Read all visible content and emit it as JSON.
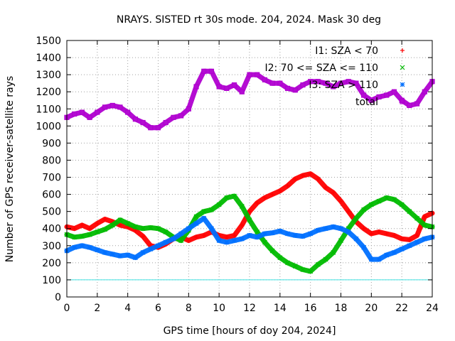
{
  "chart_data": {
    "type": "scatter",
    "title": "NRAYS. SISTED rt 30s mode. 204, 2024. Mask 30 deg",
    "xlabel": "GPS time [hours of doy 204, 2024]",
    "ylabel": "Number of GPS receiver-satellite rays",
    "xlim": [
      0,
      24
    ],
    "ylim": [
      0,
      1500
    ],
    "x_ticks": [
      "0",
      "2",
      "4",
      "6",
      "8",
      "10",
      "12",
      "14",
      "16",
      "18",
      "20",
      "22",
      "24"
    ],
    "y_ticks": [
      "0",
      "100",
      "200",
      "300",
      "400",
      "500",
      "600",
      "700",
      "800",
      "900",
      "1000",
      "1100",
      "1200",
      "1300",
      "1400",
      "1500"
    ],
    "grid": true,
    "legend_position": "top-right",
    "threshold_line": {
      "y": 100,
      "color": "#40e0e0"
    },
    "series": [
      {
        "name": "I1: SZA < 70",
        "color": "#ff0000",
        "marker": "+",
        "points": [
          [
            0,
            410
          ],
          [
            0.5,
            400
          ],
          [
            1,
            420
          ],
          [
            1.5,
            400
          ],
          [
            2,
            430
          ],
          [
            2.5,
            455
          ],
          [
            3,
            440
          ],
          [
            3.5,
            420
          ],
          [
            4,
            410
          ],
          [
            4.5,
            390
          ],
          [
            5,
            355
          ],
          [
            5.5,
            300
          ],
          [
            6,
            290
          ],
          [
            6.5,
            310
          ],
          [
            7,
            340
          ],
          [
            7.5,
            350
          ],
          [
            8,
            330
          ],
          [
            8.5,
            350
          ],
          [
            9,
            360
          ],
          [
            9.5,
            380
          ],
          [
            10,
            360
          ],
          [
            10.5,
            350
          ],
          [
            11,
            360
          ],
          [
            11.5,
            420
          ],
          [
            12,
            500
          ],
          [
            12.5,
            550
          ],
          [
            13,
            580
          ],
          [
            13.5,
            600
          ],
          [
            14,
            620
          ],
          [
            14.5,
            650
          ],
          [
            15,
            690
          ],
          [
            15.5,
            710
          ],
          [
            16,
            720
          ],
          [
            16.5,
            690
          ],
          [
            17,
            640
          ],
          [
            17.5,
            610
          ],
          [
            18,
            560
          ],
          [
            18.5,
            500
          ],
          [
            19,
            440
          ],
          [
            19.5,
            400
          ],
          [
            20,
            370
          ],
          [
            20.5,
            380
          ],
          [
            21,
            370
          ],
          [
            21.5,
            360
          ],
          [
            22,
            340
          ],
          [
            22.5,
            335
          ],
          [
            23,
            360
          ],
          [
            23.5,
            470
          ],
          [
            24,
            490
          ]
        ]
      },
      {
        "name": "I2: 70 <= SZA <= 110",
        "color": "#00bb00",
        "marker": "x",
        "points": [
          [
            0,
            365
          ],
          [
            0.5,
            350
          ],
          [
            1,
            355
          ],
          [
            1.5,
            365
          ],
          [
            2,
            380
          ],
          [
            2.5,
            395
          ],
          [
            3,
            420
          ],
          [
            3.5,
            450
          ],
          [
            4,
            430
          ],
          [
            4.5,
            410
          ],
          [
            5,
            400
          ],
          [
            5.5,
            405
          ],
          [
            6,
            400
          ],
          [
            6.5,
            380
          ],
          [
            7,
            350
          ],
          [
            7.5,
            330
          ],
          [
            8,
            390
          ],
          [
            8.5,
            470
          ],
          [
            9,
            500
          ],
          [
            9.5,
            510
          ],
          [
            10,
            540
          ],
          [
            10.5,
            580
          ],
          [
            11,
            590
          ],
          [
            11.5,
            530
          ],
          [
            12,
            450
          ],
          [
            12.5,
            380
          ],
          [
            13,
            320
          ],
          [
            13.5,
            270
          ],
          [
            14,
            230
          ],
          [
            14.5,
            200
          ],
          [
            15,
            180
          ],
          [
            15.5,
            160
          ],
          [
            16,
            150
          ],
          [
            16.5,
            190
          ],
          [
            17,
            220
          ],
          [
            17.5,
            260
          ],
          [
            18,
            330
          ],
          [
            18.5,
            400
          ],
          [
            19,
            460
          ],
          [
            19.5,
            510
          ],
          [
            20,
            540
          ],
          [
            20.5,
            560
          ],
          [
            21,
            580
          ],
          [
            21.5,
            570
          ],
          [
            22,
            540
          ],
          [
            22.5,
            500
          ],
          [
            23,
            460
          ],
          [
            23.5,
            420
          ],
          [
            24,
            410
          ]
        ]
      },
      {
        "name": "I3: SZA > 110",
        "color": "#0070ff",
        "marker": "*",
        "points": [
          [
            0,
            270
          ],
          [
            0.5,
            290
          ],
          [
            1,
            300
          ],
          [
            1.5,
            290
          ],
          [
            2,
            275
          ],
          [
            2.5,
            260
          ],
          [
            3,
            250
          ],
          [
            3.5,
            240
          ],
          [
            4,
            245
          ],
          [
            4.5,
            230
          ],
          [
            5,
            260
          ],
          [
            5.5,
            280
          ],
          [
            6,
            300
          ],
          [
            6.5,
            320
          ],
          [
            7,
            340
          ],
          [
            7.5,
            370
          ],
          [
            8,
            400
          ],
          [
            8.5,
            430
          ],
          [
            9,
            460
          ],
          [
            9.5,
            400
          ],
          [
            10,
            330
          ],
          [
            10.5,
            320
          ],
          [
            11,
            330
          ],
          [
            11.5,
            340
          ],
          [
            12,
            360
          ],
          [
            12.5,
            350
          ],
          [
            13,
            370
          ],
          [
            13.5,
            375
          ],
          [
            14,
            385
          ],
          [
            14.5,
            370
          ],
          [
            15,
            360
          ],
          [
            15.5,
            355
          ],
          [
            16,
            370
          ],
          [
            16.5,
            390
          ],
          [
            17,
            400
          ],
          [
            17.5,
            410
          ],
          [
            18,
            400
          ],
          [
            18.5,
            380
          ],
          [
            19,
            340
          ],
          [
            19.5,
            290
          ],
          [
            20,
            220
          ],
          [
            20.5,
            220
          ],
          [
            21,
            245
          ],
          [
            21.5,
            260
          ],
          [
            22,
            280
          ],
          [
            22.5,
            300
          ],
          [
            23,
            320
          ],
          [
            23.5,
            340
          ],
          [
            24,
            350
          ]
        ]
      },
      {
        "name": "total",
        "color": "#b000d0",
        "marker": "square",
        "points": [
          [
            0,
            1050
          ],
          [
            0.5,
            1070
          ],
          [
            1,
            1080
          ],
          [
            1.5,
            1050
          ],
          [
            2,
            1080
          ],
          [
            2.5,
            1110
          ],
          [
            3,
            1120
          ],
          [
            3.5,
            1110
          ],
          [
            4,
            1080
          ],
          [
            4.5,
            1040
          ],
          [
            5,
            1020
          ],
          [
            5.5,
            990
          ],
          [
            6,
            990
          ],
          [
            6.5,
            1020
          ],
          [
            7,
            1050
          ],
          [
            7.5,
            1060
          ],
          [
            8,
            1100
          ],
          [
            8.5,
            1230
          ],
          [
            9,
            1320
          ],
          [
            9.5,
            1320
          ],
          [
            10,
            1230
          ],
          [
            10.5,
            1220
          ],
          [
            11,
            1240
          ],
          [
            11.5,
            1200
          ],
          [
            12,
            1300
          ],
          [
            12.5,
            1300
          ],
          [
            13,
            1270
          ],
          [
            13.5,
            1250
          ],
          [
            14,
            1250
          ],
          [
            14.5,
            1220
          ],
          [
            15,
            1210
          ],
          [
            15.5,
            1240
          ],
          [
            16,
            1260
          ],
          [
            16.5,
            1260
          ],
          [
            17,
            1250
          ],
          [
            17.5,
            1230
          ],
          [
            18,
            1250
          ],
          [
            18.5,
            1260
          ],
          [
            19,
            1250
          ],
          [
            19.5,
            1180
          ],
          [
            20,
            1150
          ],
          [
            20.5,
            1170
          ],
          [
            21,
            1180
          ],
          [
            21.5,
            1200
          ],
          [
            22,
            1150
          ],
          [
            22.5,
            1120
          ],
          [
            23,
            1130
          ],
          [
            23.5,
            1200
          ],
          [
            24,
            1260
          ]
        ]
      }
    ]
  }
}
